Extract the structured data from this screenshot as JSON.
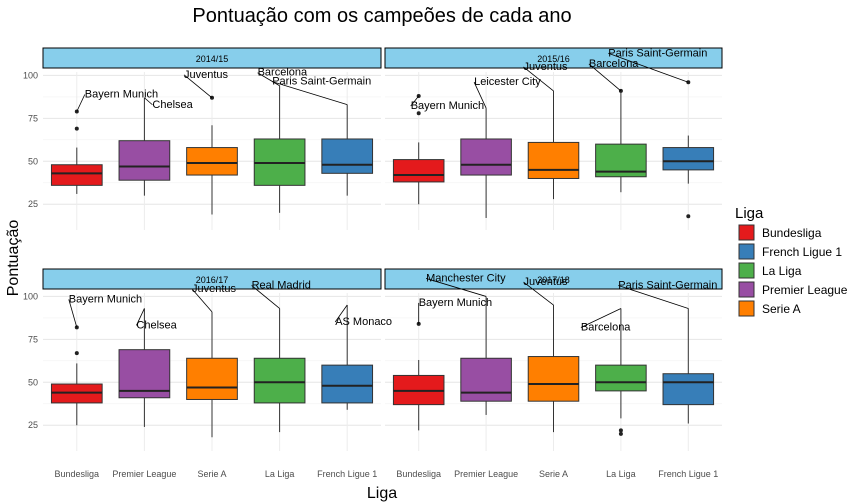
{
  "chart_data": {
    "type": "boxplot",
    "title": "Pontuação com os campeões de cada ano",
    "xlabel": "Liga",
    "ylabel": "Pontuação",
    "ylim": [
      10,
      102
    ],
    "yticks": [
      25,
      50,
      75,
      100
    ],
    "grid": true,
    "legend": {
      "title": "Liga",
      "position": "right",
      "entries": [
        {
          "name": "Bundesliga",
          "color": "#e41a1c"
        },
        {
          "name": "French Ligue 1",
          "color": "#377eb8"
        },
        {
          "name": "La Liga",
          "color": "#4daf4a"
        },
        {
          "name": "Premier League",
          "color": "#984ea3"
        },
        {
          "name": "Serie A",
          "color": "#ff7f00"
        }
      ]
    },
    "colors": {
      "Bundesliga": "#e41a1c",
      "French Ligue 1": "#377eb8",
      "La Liga": "#4daf4a",
      "Premier League": "#984ea3",
      "Serie A": "#ff7f00"
    },
    "facets": [
      {
        "title": "2014/15",
        "categories": [
          "Bundesliga",
          "Premier League",
          "Serie A",
          "La Liga",
          "French Ligue 1"
        ],
        "boxes": [
          {
            "league": "Bundesliga",
            "min": 31,
            "q1": 36,
            "median": 43,
            "q3": 48,
            "max": 58,
            "outliers": [
              69,
              79
            ]
          },
          {
            "league": "Premier League",
            "min": 30,
            "q1": 39,
            "median": 47,
            "q3": 62,
            "max": 87,
            "outliers": []
          },
          {
            "league": "Serie A",
            "min": 19,
            "q1": 42,
            "median": 49,
            "q3": 58,
            "max": 71,
            "outliers": [
              87
            ]
          },
          {
            "league": "La Liga",
            "min": 20,
            "q1": 36,
            "median": 49,
            "q3": 63,
            "max": 94,
            "outliers": []
          },
          {
            "league": "French Ligue 1",
            "min": 30,
            "q1": 43,
            "median": 48,
            "q3": 63,
            "max": 83,
            "outliers": []
          }
        ],
        "annotations": [
          {
            "text": "Bayern Munich",
            "league": "Bundesliga",
            "value": 79
          },
          {
            "text": "Chelsea",
            "league": "Premier League",
            "value": 87
          },
          {
            "text": "Juventus",
            "league": "Serie A",
            "value": 87
          },
          {
            "text": "Barcelona",
            "league": "La Liga",
            "value": 94
          },
          {
            "text": "Paris Saint-Germain",
            "league": "French Ligue 1",
            "value": 83
          }
        ]
      },
      {
        "title": "2015/16",
        "categories": [
          "Bundesliga",
          "Premier League",
          "Serie A",
          "La Liga",
          "French Ligue 1"
        ],
        "boxes": [
          {
            "league": "Bundesliga",
            "min": 25,
            "q1": 38,
            "median": 42,
            "q3": 51,
            "max": 61,
            "outliers": [
              78,
              88
            ]
          },
          {
            "league": "Premier League",
            "min": 17,
            "q1": 42,
            "median": 48,
            "q3": 63,
            "max": 81,
            "outliers": []
          },
          {
            "league": "Serie A",
            "min": 28,
            "q1": 40,
            "median": 45,
            "q3": 61,
            "max": 91,
            "outliers": []
          },
          {
            "league": "La Liga",
            "min": 32,
            "q1": 41,
            "median": 44,
            "q3": 60,
            "max": 90,
            "outliers": [
              91
            ]
          },
          {
            "league": "French Ligue 1",
            "min": 37,
            "q1": 45,
            "median": 50,
            "q3": 58,
            "max": 65,
            "outliers": [
              96,
              18
            ]
          }
        ],
        "annotations": [
          {
            "text": "Bayern Munich",
            "league": "Bundesliga",
            "value": 88
          },
          {
            "text": "Leicester City",
            "league": "Premier League",
            "value": 81
          },
          {
            "text": "Juventus",
            "league": "Serie A",
            "value": 91
          },
          {
            "text": "Barcelona",
            "league": "La Liga",
            "value": 91
          },
          {
            "text": "Paris Saint-Germain",
            "league": "French Ligue 1",
            "value": 96
          }
        ]
      },
      {
        "title": "2016/17",
        "categories": [
          "Bundesliga",
          "Premier League",
          "Serie A",
          "La Liga",
          "French Ligue 1"
        ],
        "boxes": [
          {
            "league": "Bundesliga",
            "min": 25,
            "q1": 38,
            "median": 44,
            "q3": 49,
            "max": 61,
            "outliers": [
              67,
              82
            ]
          },
          {
            "league": "Premier League",
            "min": 24,
            "q1": 41,
            "median": 45,
            "q3": 69,
            "max": 93,
            "outliers": []
          },
          {
            "league": "Serie A",
            "min": 18,
            "q1": 40,
            "median": 47,
            "q3": 64,
            "max": 91,
            "outliers": []
          },
          {
            "league": "La Liga",
            "min": 21,
            "q1": 38,
            "median": 50,
            "q3": 64,
            "max": 93,
            "outliers": []
          },
          {
            "league": "French Ligue 1",
            "min": 34,
            "q1": 38,
            "median": 48,
            "q3": 60,
            "max": 95,
            "outliers": []
          }
        ],
        "annotations": [
          {
            "text": "Bayern Munich",
            "league": "Bundesliga",
            "value": 82
          },
          {
            "text": "Chelsea",
            "league": "Premier League",
            "value": 93
          },
          {
            "text": "Juventus",
            "league": "Serie A",
            "value": 91
          },
          {
            "text": "Real Madrid",
            "league": "La Liga",
            "value": 93
          },
          {
            "text": "AS Monaco",
            "league": "French Ligue 1",
            "value": 95
          }
        ]
      },
      {
        "title": "2017/18",
        "categories": [
          "Bundesliga",
          "Premier League",
          "Serie A",
          "La Liga",
          "French Ligue 1"
        ],
        "boxes": [
          {
            "league": "Bundesliga",
            "min": 22,
            "q1": 37,
            "median": 45,
            "q3": 54,
            "max": 63,
            "outliers": [
              84
            ]
          },
          {
            "league": "Premier League",
            "min": 31,
            "q1": 39,
            "median": 44,
            "q3": 64,
            "max": 100,
            "outliers": []
          },
          {
            "league": "Serie A",
            "min": 21,
            "q1": 39,
            "median": 49,
            "q3": 65,
            "max": 95,
            "outliers": []
          },
          {
            "league": "La Liga",
            "min": 29,
            "q1": 45,
            "median": 50,
            "q3": 60,
            "max": 93,
            "outliers": [
              20,
              22
            ]
          },
          {
            "league": "French Ligue 1",
            "min": 26,
            "q1": 37,
            "median": 50,
            "q3": 55,
            "max": 93,
            "outliers": []
          }
        ],
        "annotations": [
          {
            "text": "Bayern Munich",
            "league": "Bundesliga",
            "value": 84
          },
          {
            "text": "Manchester City",
            "league": "Premier League",
            "value": 100
          },
          {
            "text": "Juventus",
            "league": "Serie A",
            "value": 95
          },
          {
            "text": "Barcelona",
            "league": "La Liga",
            "value": 93
          },
          {
            "text": "Paris Saint-Germain",
            "league": "French Ligue 1",
            "value": 93
          }
        ]
      }
    ]
  }
}
